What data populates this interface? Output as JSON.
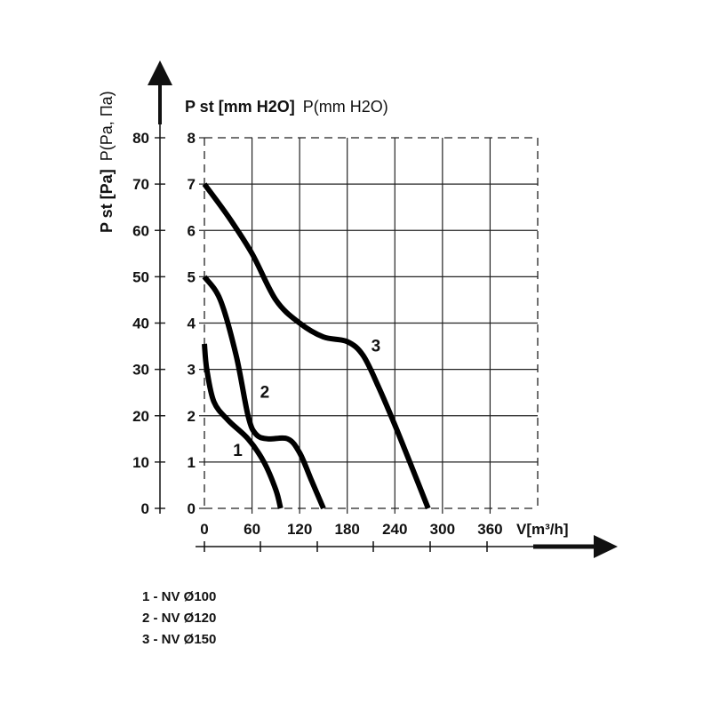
{
  "chart_data": {
    "type": "line",
    "title": "",
    "top_label_bold": "P st [mm H2O]",
    "top_label_regular": "P(mm H2O)",
    "ylabel_bold": "P st [Pa]",
    "ylabel_regular": "P(Pa, Па)",
    "xlabel": "V[m³/h]",
    "xlim": [
      0,
      420
    ],
    "ylim": [
      0,
      8
    ],
    "x_ticks": [
      "0",
      "60",
      "120",
      "180",
      "240",
      "300",
      "360"
    ],
    "x_tick_values": [
      0,
      60,
      120,
      180,
      240,
      300,
      360
    ],
    "y_ticks_mm": [
      "0",
      "1",
      "2",
      "3",
      "4",
      "5",
      "6",
      "7",
      "8"
    ],
    "y_ticks_pa": [
      "0",
      "10",
      "20",
      "30",
      "40",
      "50",
      "60",
      "70",
      "80"
    ],
    "grid": true,
    "series": [
      {
        "name": "1",
        "label": "1 - NV Ø100",
        "label_pos": [
          42,
          1.25
        ],
        "x": [
          0,
          3,
          12,
          30,
          55,
          75,
          90,
          96
        ],
        "y": [
          3.55,
          3.0,
          2.3,
          1.9,
          1.5,
          1.0,
          0.4,
          0
        ]
      },
      {
        "name": "2",
        "label": "2 - NV Ø120",
        "label_pos": [
          76,
          2.5
        ],
        "x": [
          0,
          20,
          40,
          55,
          65,
          80,
          105,
          120,
          135,
          150
        ],
        "y": [
          5.0,
          4.5,
          3.3,
          2.0,
          1.6,
          1.5,
          1.5,
          1.2,
          0.6,
          0
        ]
      },
      {
        "name": "3",
        "label": "3 - NV Ø150",
        "label_pos": [
          216,
          3.5
        ],
        "x": [
          0,
          30,
          60,
          90,
          120,
          150,
          180,
          200,
          220,
          240,
          260,
          282
        ],
        "y": [
          7.0,
          6.3,
          5.5,
          4.5,
          4.0,
          3.7,
          3.6,
          3.3,
          2.6,
          1.8,
          0.95,
          0
        ]
      }
    ]
  }
}
